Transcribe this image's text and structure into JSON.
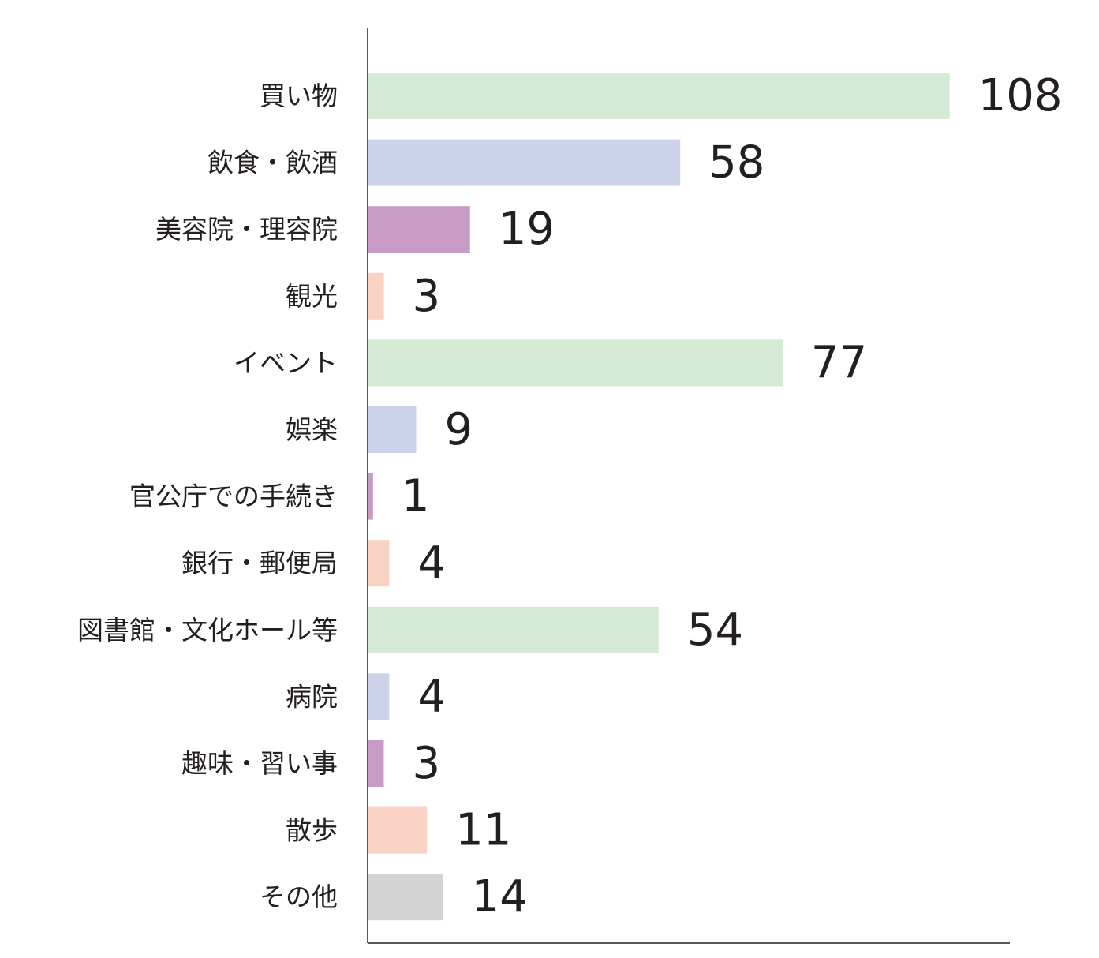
{
  "chart_data": {
    "type": "bar",
    "orientation": "horizontal",
    "categories": [
      "買い物",
      "飲食・飲酒",
      "美容院・理容院",
      "観光",
      "イベント",
      "娯楽",
      "官公庁での手続き",
      "銀行・郵便局",
      "図書館・文化ホール等",
      "病院",
      "趣味・習い事",
      "散歩",
      "その他"
    ],
    "values": [
      108,
      58,
      19,
      3,
      77,
      9,
      1,
      4,
      54,
      4,
      3,
      11,
      14
    ],
    "colors": [
      "#d5ead5",
      "#ccd2ea",
      "#c89bc6",
      "#f9d2c3",
      "#d5ead5",
      "#ccd2ea",
      "#c89bc6",
      "#f9d2c3",
      "#d5ead5",
      "#ccd2ea",
      "#c89bc6",
      "#f9d2c3",
      "#d3d3d3"
    ],
    "data_labels": [
      "108",
      "58",
      "19",
      "3",
      "77",
      "9",
      "1",
      "4",
      "54",
      "4",
      "3",
      "11",
      "14"
    ],
    "xlim": [
      0,
      120
    ],
    "grid": false,
    "legend": "none"
  }
}
